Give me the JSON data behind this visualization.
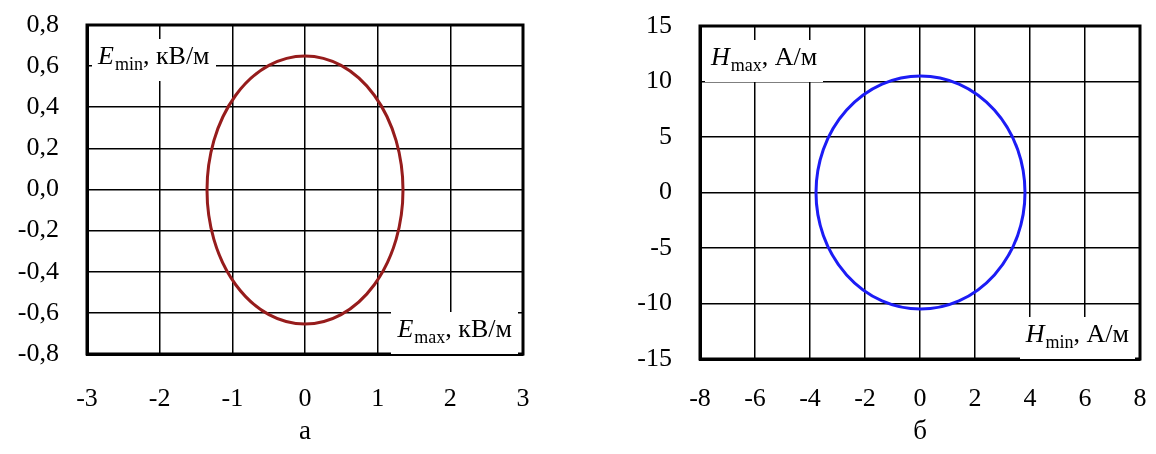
{
  "chart_data": [
    {
      "type": "line",
      "xlabel": "E$_{max}$, кВ/м",
      "ylabel": "E$_{min}$, кВ/м",
      "xlim": [
        -3,
        3
      ],
      "xticks": [
        -3,
        -2,
        -1,
        0,
        1,
        2,
        3
      ],
      "ylim": [
        -0.8,
        0.8
      ],
      "yticks": [
        {
          "value": -0.8,
          "label": "-0,8"
        },
        {
          "value": -0.6,
          "label": "-0,6"
        },
        {
          "value": -0.4,
          "label": "-0,4"
        },
        {
          "value": -0.2,
          "label": "-0,2"
        },
        {
          "value": 0,
          "label": "0,0"
        },
        {
          "value": 0.2,
          "label": "0,2"
        },
        {
          "value": 0.4,
          "label": "0,4"
        },
        {
          "value": 0.6,
          "label": "0,6"
        },
        {
          "value": 0.8,
          "label": "0,8"
        }
      ],
      "grid": true,
      "annotations": [
        "а"
      ]
    },
    {
      "type": "line",
      "xlabel": "H$_{min}$, А/м",
      "ylabel": "H$_{max}$, А/м",
      "xlim": [
        -8,
        8
      ],
      "xticks": [
        -8,
        -6,
        -4,
        -2,
        0,
        2,
        4,
        6,
        8
      ],
      "ylim": [
        -15,
        15
      ],
      "yticks": [
        -15,
        -10,
        -5,
        0,
        5,
        10,
        15
      ],
      "grid": true,
      "annotations": [
        "б"
      ]
    }
  ]
}
